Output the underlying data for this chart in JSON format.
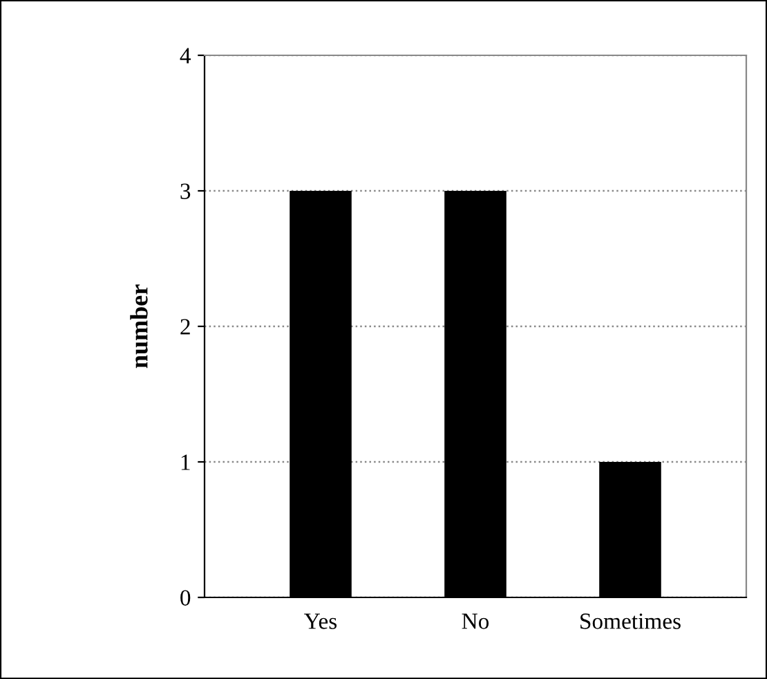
{
  "chart_data": {
    "type": "bar",
    "ylabel": "number",
    "categories": [
      "Yes",
      "No",
      "Sometimes"
    ],
    "values": [
      3,
      3,
      1
    ],
    "color": "#000000",
    "ylim": [
      0,
      4
    ],
    "yticks": [
      0,
      1,
      2,
      3,
      4
    ],
    "grid": "y"
  }
}
